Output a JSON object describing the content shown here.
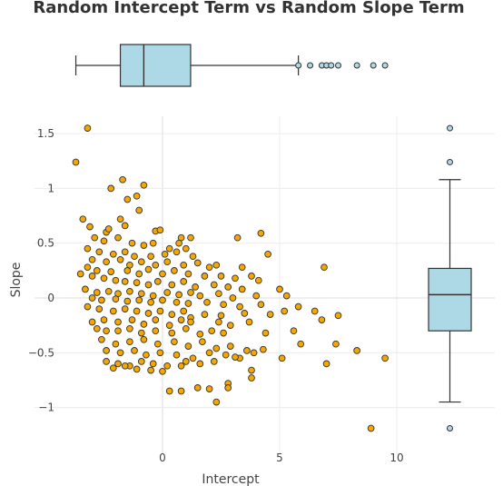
{
  "chart_data": {
    "type": "scatter",
    "title": "Random Intercept Term vs Random Slope Term",
    "xlabel": "Intercept",
    "ylabel": "Slope",
    "xlim": [
      -4.6,
      14.2
    ],
    "ylim": [
      -1.3,
      1.75
    ],
    "x_ticks": [
      0,
      5,
      10
    ],
    "x_tick_labels": [
      "0",
      "5",
      "10"
    ],
    "y_ticks": [
      -1,
      -0.5,
      0,
      0.5,
      1,
      1.5
    ],
    "y_tick_labels": [
      "−1",
      "−0.5",
      "0",
      "0.5",
      "1",
      "1.5"
    ],
    "grid": true,
    "colors": {
      "point_fill": "#f5a700",
      "point_stroke": "#333333",
      "box_fill": "#add8e6",
      "box_stroke": "#333333",
      "outlier_fill": "#add8e6"
    },
    "marginal_box_x": {
      "orientation": "horizontal",
      "whisker_low": -3.7,
      "q1": -1.8,
      "median": -0.8,
      "q3": 1.2,
      "whisker_high": 5.8,
      "outliers": [
        5.8,
        6.3,
        6.8,
        7.0,
        7.2,
        7.5,
        8.3,
        9.0,
        9.5
      ]
    },
    "marginal_box_y": {
      "orientation": "vertical",
      "whisker_low": -0.95,
      "q1": -0.3,
      "median": 0.03,
      "q3": 0.27,
      "whisker_high": 1.08,
      "outliers": [
        1.55,
        1.24,
        -1.19
      ]
    },
    "points": [
      [
        -3.7,
        1.24
      ],
      [
        -3.2,
        1.55
      ],
      [
        -1.7,
        1.08
      ],
      [
        -2.2,
        1.0
      ],
      [
        -1.1,
        0.93
      ],
      [
        -0.8,
        1.03
      ],
      [
        -1.5,
        0.9
      ],
      [
        -1.0,
        0.8
      ],
      [
        -3.4,
        0.72
      ],
      [
        -1.8,
        0.72
      ],
      [
        -3.1,
        0.65
      ],
      [
        -2.4,
        0.6
      ],
      [
        -2.3,
        0.63
      ],
      [
        -1.6,
        0.66
      ],
      [
        -0.3,
        0.61
      ],
      [
        -0.1,
        0.62
      ],
      [
        0.8,
        0.55
      ],
      [
        1.2,
        0.55
      ],
      [
        3.2,
        0.55
      ],
      [
        4.2,
        0.59
      ],
      [
        -2.9,
        0.55
      ],
      [
        -2.5,
        0.52
      ],
      [
        -1.9,
        0.55
      ],
      [
        -1.3,
        0.5
      ],
      [
        -0.8,
        0.48
      ],
      [
        -0.4,
        0.5
      ],
      [
        0.3,
        0.45
      ],
      [
        0.7,
        0.5
      ],
      [
        1.0,
        0.45
      ],
      [
        4.5,
        0.4
      ],
      [
        -3.2,
        0.45
      ],
      [
        -2.7,
        0.42
      ],
      [
        -2.1,
        0.4
      ],
      [
        -1.6,
        0.42
      ],
      [
        -1.2,
        0.38
      ],
      [
        -0.5,
        0.38
      ],
      [
        0.1,
        0.4
      ],
      [
        0.6,
        0.42
      ],
      [
        1.3,
        0.38
      ],
      [
        -3.0,
        0.35
      ],
      [
        -2.4,
        0.33
      ],
      [
        -1.8,
        0.35
      ],
      [
        -1.4,
        0.3
      ],
      [
        -0.9,
        0.33
      ],
      [
        -0.3,
        0.3
      ],
      [
        0.2,
        0.33
      ],
      [
        0.9,
        0.3
      ],
      [
        1.5,
        0.32
      ],
      [
        2.0,
        0.28
      ],
      [
        2.3,
        0.3
      ],
      [
        3.4,
        0.28
      ],
      [
        -3.2,
        0.28
      ],
      [
        -2.8,
        0.25
      ],
      [
        -2.2,
        0.24
      ],
      [
        -1.5,
        0.25
      ],
      [
        -1.0,
        0.22
      ],
      [
        -0.6,
        0.26
      ],
      [
        0.0,
        0.22
      ],
      [
        0.5,
        0.25
      ],
      [
        1.1,
        0.22
      ],
      [
        1.8,
        0.2
      ],
      [
        2.5,
        0.2
      ],
      [
        3.1,
        0.18
      ],
      [
        3.8,
        0.2
      ],
      [
        4.1,
        0.16
      ],
      [
        -3.5,
        0.22
      ],
      [
        -3.0,
        0.2
      ],
      [
        -2.5,
        0.18
      ],
      [
        -2.0,
        0.16
      ],
      [
        -1.6,
        0.15
      ],
      [
        -1.1,
        0.14
      ],
      [
        -0.6,
        0.12
      ],
      [
        -0.2,
        0.15
      ],
      [
        0.4,
        0.12
      ],
      [
        0.9,
        0.15
      ],
      [
        1.4,
        0.1
      ],
      [
        2.2,
        0.12
      ],
      [
        2.8,
        0.1
      ],
      [
        3.4,
        0.08
      ],
      [
        5.0,
        0.08
      ],
      [
        6.9,
        0.28
      ],
      [
        -3.3,
        0.08
      ],
      [
        -2.8,
        0.05
      ],
      [
        -2.3,
        0.06
      ],
      [
        -1.9,
        0.04
      ],
      [
        -1.4,
        0.06
      ],
      [
        -0.9,
        0.04
      ],
      [
        -0.4,
        0.02
      ],
      [
        0.2,
        0.05
      ],
      [
        0.7,
        0.03
      ],
      [
        1.2,
        0.05
      ],
      [
        1.6,
        0.02
      ],
      [
        2.4,
        0.04
      ],
      [
        3.0,
        0.0
      ],
      [
        4.0,
        0.02
      ],
      [
        5.3,
        0.02
      ],
      [
        -3.0,
        0.0
      ],
      [
        -2.6,
        -0.02
      ],
      [
        -2.0,
        -0.01
      ],
      [
        -1.5,
        -0.03
      ],
      [
        -1.0,
        -0.02
      ],
      [
        -0.5,
        -0.04
      ],
      [
        0.0,
        -0.02
      ],
      [
        0.6,
        -0.04
      ],
      [
        1.1,
        -0.05
      ],
      [
        1.9,
        -0.04
      ],
      [
        2.6,
        -0.06
      ],
      [
        3.3,
        -0.08
      ],
      [
        4.2,
        -0.06
      ],
      [
        5.8,
        -0.08
      ],
      [
        -3.2,
        -0.08
      ],
      [
        -2.7,
        -0.1
      ],
      [
        -2.1,
        -0.12
      ],
      [
        -1.6,
        -0.1
      ],
      [
        -1.1,
        -0.12
      ],
      [
        -0.6,
        -0.14
      ],
      [
        -0.1,
        -0.12
      ],
      [
        0.4,
        -0.15
      ],
      [
        0.9,
        -0.12
      ],
      [
        1.2,
        -0.18
      ],
      [
        1.8,
        -0.15
      ],
      [
        2.5,
        -0.16
      ],
      [
        3.5,
        -0.14
      ],
      [
        4.6,
        -0.15
      ],
      [
        5.2,
        -0.12
      ],
      [
        6.5,
        -0.12
      ],
      [
        7.5,
        -0.16
      ],
      [
        -3.0,
        -0.22
      ],
      [
        -2.5,
        -0.2
      ],
      [
        -1.9,
        -0.22
      ],
      [
        -1.3,
        -0.2
      ],
      [
        -0.8,
        -0.24
      ],
      [
        -0.3,
        -0.2
      ],
      [
        0.3,
        -0.25
      ],
      [
        0.8,
        -0.2
      ],
      [
        1.2,
        -0.22
      ],
      [
        2.4,
        -0.22
      ],
      [
        2.9,
        -0.25
      ],
      [
        3.7,
        -0.22
      ],
      [
        6.8,
        -0.2
      ],
      [
        -2.8,
        -0.28
      ],
      [
        -2.4,
        -0.3
      ],
      [
        -1.9,
        -0.3
      ],
      [
        -1.4,
        -0.28
      ],
      [
        -0.9,
        -0.32
      ],
      [
        -0.3,
        -0.3
      ],
      [
        0.4,
        -0.32
      ],
      [
        1.0,
        -0.28
      ],
      [
        1.6,
        -0.33
      ],
      [
        2.1,
        -0.3
      ],
      [
        2.6,
        -0.32
      ],
      [
        4.4,
        -0.32
      ],
      [
        5.6,
        -0.3
      ],
      [
        -2.6,
        -0.38
      ],
      [
        -2.0,
        -0.42
      ],
      [
        -1.4,
        -0.4
      ],
      [
        -0.8,
        -0.38
      ],
      [
        -0.2,
        -0.42
      ],
      [
        0.5,
        -0.4
      ],
      [
        1.1,
        -0.44
      ],
      [
        1.7,
        -0.4
      ],
      [
        2.3,
        -0.46
      ],
      [
        2.9,
        -0.44
      ],
      [
        3.6,
        -0.48
      ],
      [
        4.3,
        -0.47
      ],
      [
        5.9,
        -0.42
      ],
      [
        7.4,
        -0.42
      ],
      [
        8.3,
        -0.48
      ],
      [
        -2.4,
        -0.48
      ],
      [
        -1.8,
        -0.5
      ],
      [
        -1.2,
        -0.48
      ],
      [
        -0.7,
        -0.52
      ],
      [
        -0.1,
        -0.5
      ],
      [
        0.6,
        -0.52
      ],
      [
        1.3,
        -0.55
      ],
      [
        2.0,
        -0.5
      ],
      [
        2.7,
        -0.52
      ],
      [
        3.3,
        -0.55
      ],
      [
        3.9,
        -0.5
      ],
      [
        5.1,
        -0.55
      ],
      [
        -2.4,
        -0.58
      ],
      [
        -1.9,
        -0.6
      ],
      [
        -1.4,
        -0.62
      ],
      [
        -0.9,
        -0.58
      ],
      [
        -0.4,
        -0.6
      ],
      [
        0.2,
        -0.62
      ],
      [
        1.0,
        -0.58
      ],
      [
        1.6,
        -0.6
      ],
      [
        2.2,
        -0.58
      ],
      [
        3.1,
        -0.54
      ],
      [
        7.0,
        -0.6
      ],
      [
        9.5,
        -0.55
      ],
      [
        -2.1,
        -0.64
      ],
      [
        -1.6,
        -0.62
      ],
      [
        -1.1,
        -0.65
      ],
      [
        -0.5,
        -0.66
      ],
      [
        0.0,
        -0.67
      ],
      [
        0.8,
        -0.62
      ],
      [
        3.8,
        -0.66
      ],
      [
        0.3,
        -0.85
      ],
      [
        0.8,
        -0.85
      ],
      [
        1.5,
        -0.82
      ],
      [
        2.0,
        -0.83
      ],
      [
        2.8,
        -0.78
      ],
      [
        2.8,
        -0.82
      ],
      [
        3.8,
        -0.73
      ],
      [
        2.3,
        -0.95
      ],
      [
        8.9,
        -1.19
      ]
    ]
  }
}
